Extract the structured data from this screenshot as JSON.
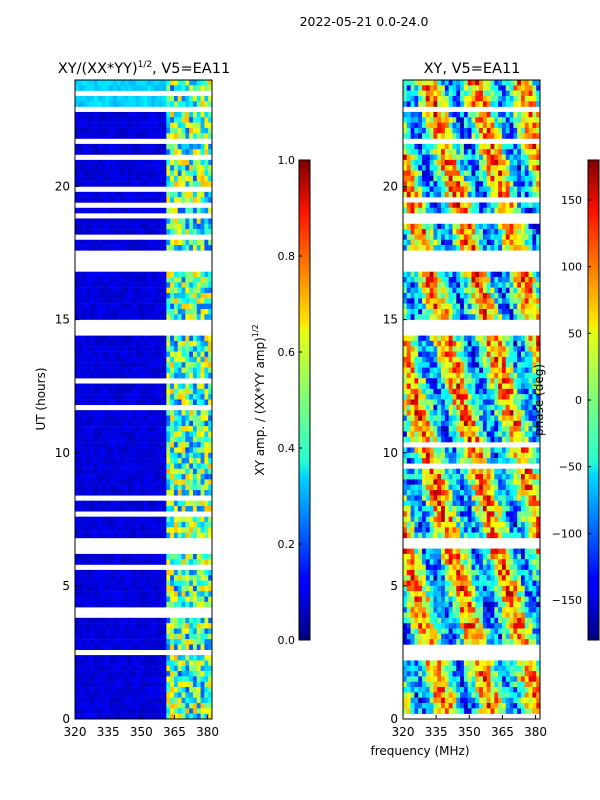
{
  "chart_data": {
    "type": "heatmap",
    "suptitle": "2022-05-21 0.0-24.0",
    "xlabel": "frequency (MHz)",
    "panels": [
      {
        "title": "XY/(XX*YY)",
        "title_exp": "1/2",
        "title_suffix": ", V5=EA11",
        "ylabel": "UT (hours)",
        "xlim": [
          320,
          382
        ],
        "ylim": [
          0,
          24
        ],
        "xticks": [
          "320",
          "335",
          "350",
          "365",
          "380"
        ],
        "xtick_values": [
          320,
          335,
          350,
          365,
          380
        ],
        "yticks": [
          "0",
          "5",
          "10",
          "15",
          "20"
        ],
        "ytick_values": [
          0,
          5,
          10,
          15,
          20
        ],
        "colorbar": {
          "label": "XY amp. / (XX*YY amp)",
          "label_exp": "1/2",
          "range": [
            0.0,
            1.0
          ],
          "ticks": [
            "0.0",
            "0.2",
            "0.4",
            "0.6",
            "0.8",
            "1.0"
          ],
          "tick_values": [
            0.0,
            0.2,
            0.4,
            0.6,
            0.8,
            1.0
          ]
        }
      },
      {
        "title": "XY, V5=EA11",
        "ylabel": "",
        "xlim": [
          320,
          382
        ],
        "ylim": [
          0,
          24
        ],
        "xticks": [
          "320",
          "335",
          "350",
          "365",
          "380"
        ],
        "xtick_values": [
          320,
          335,
          350,
          365,
          380
        ],
        "yticks": [
          "0",
          "5",
          "10",
          "15",
          "20"
        ],
        "ytick_values": [
          0,
          5,
          10,
          15,
          20
        ],
        "colorbar": {
          "label": "phase (deg)",
          "range": [
            -180,
            180
          ],
          "ticks": [
            "−150",
            "−100",
            "−50",
            "0",
            "50",
            "100",
            "150"
          ],
          "tick_values": [
            -150,
            -100,
            -50,
            0,
            50,
            100,
            150
          ]
        }
      }
    ],
    "gaps_hours": [
      [
        16.8,
        17.6
      ],
      [
        14.4,
        15.0
      ],
      [
        6.5,
        6.7
      ],
      [
        2.5,
        2.6
      ],
      [
        1.9,
        2.0
      ],
      [
        18.9,
        19.0
      ],
      [
        22.8,
        23.0
      ]
    ]
  }
}
